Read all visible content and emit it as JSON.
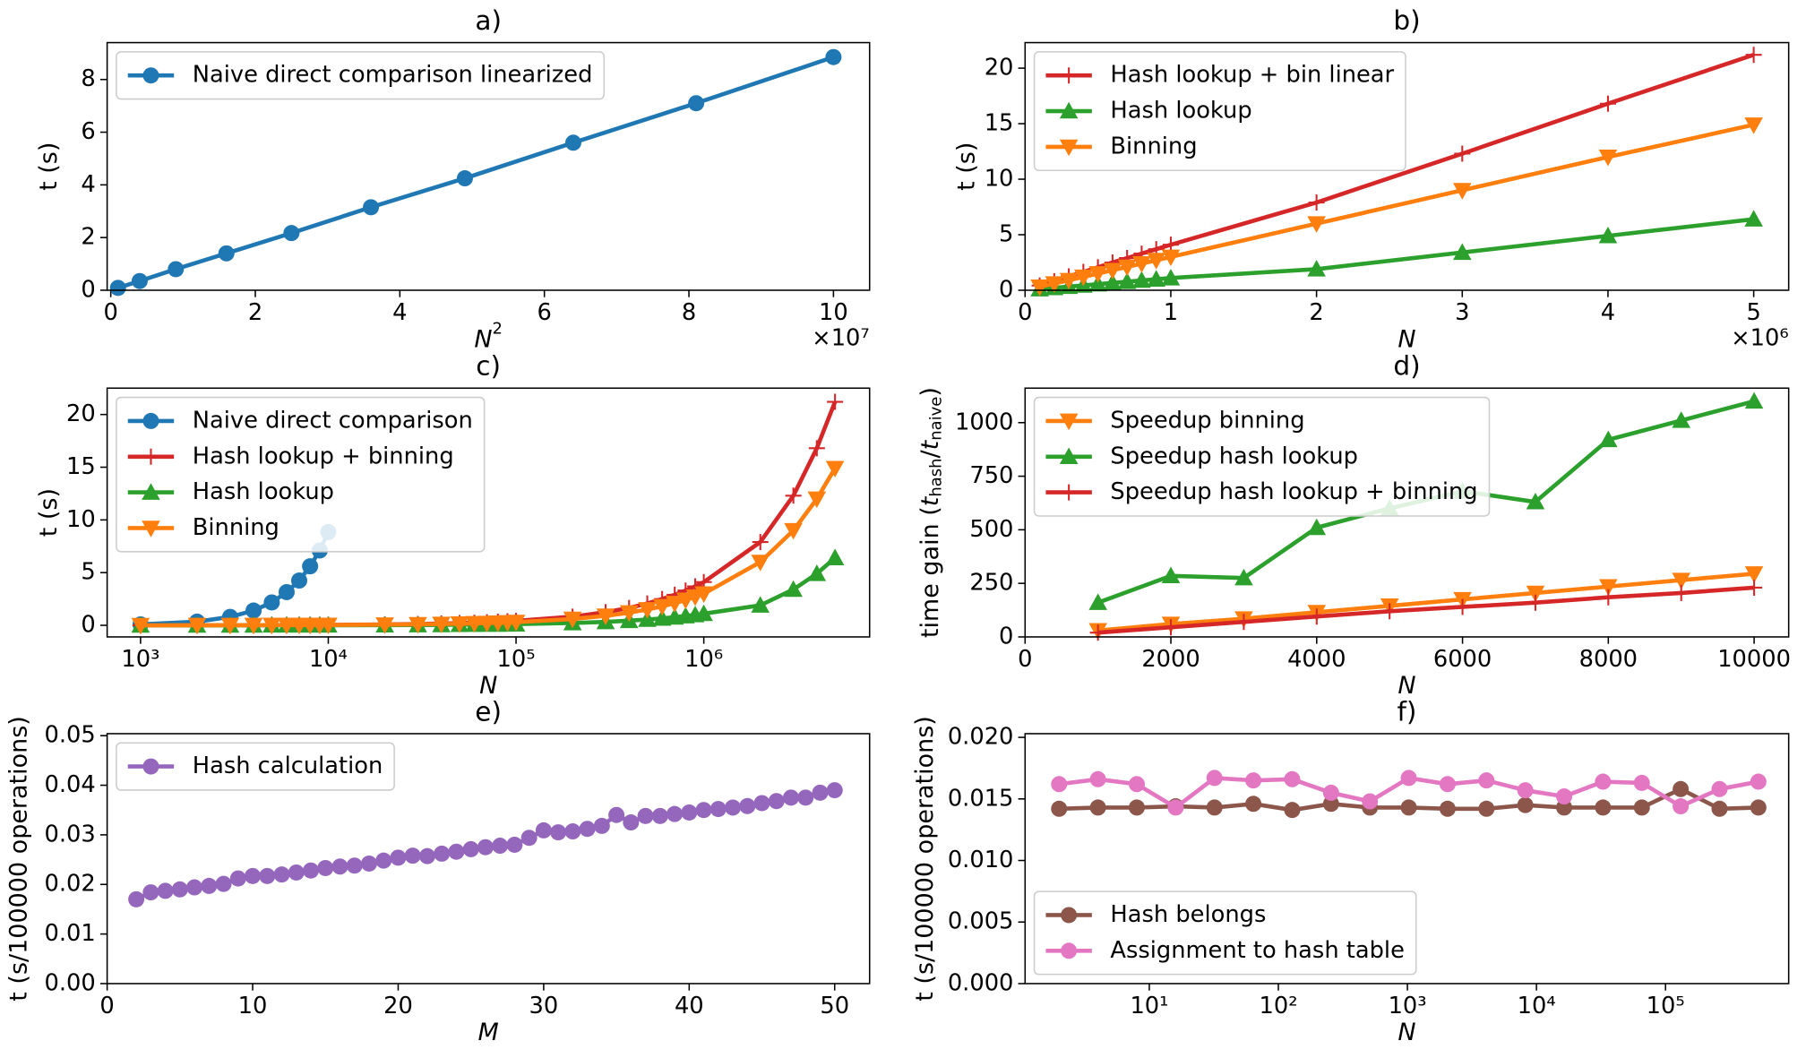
{
  "chart_data": [
    {
      "type": "line",
      "title": "a)",
      "x_label": "N",
      "x_label_sup": "2",
      "y_label": "t (s)",
      "x_offset_label": "×10⁷",
      "x": [
        0.1,
        0.4,
        0.9,
        1.6,
        2.5,
        3.6,
        4.9,
        6.4,
        8.1,
        10
      ],
      "series": [
        {
          "name": "Naive direct comparison linearized",
          "color": "#1f77b4",
          "marker": "o",
          "values": [
            0.09,
            0.35,
            0.8,
            1.4,
            2.17,
            3.15,
            4.25,
            5.6,
            7.1,
            8.85
          ]
        }
      ],
      "xlim": [
        -0.05,
        10.5
      ],
      "ylim": [
        0,
        9.4
      ],
      "xticks": [
        0,
        2,
        4,
        6,
        8,
        10
      ],
      "yticks": [
        0,
        2,
        4,
        6,
        8
      ],
      "legend": "upper left",
      "grid": false
    },
    {
      "type": "line",
      "title": "b)",
      "x_label": "N",
      "y_label": "t (s)",
      "x_offset_label": "×10⁶",
      "x": [
        0.1,
        0.2,
        0.3,
        0.4,
        0.5,
        0.6,
        0.7,
        0.8,
        0.9,
        1.0,
        2,
        3,
        4,
        5
      ],
      "series": [
        {
          "name": "Hash lookup + bin linear",
          "color": "#d62728",
          "marker": "+",
          "values": [
            0.42,
            0.82,
            1.25,
            1.65,
            2.07,
            2.5,
            2.9,
            3.3,
            3.7,
            4.1,
            7.9,
            12.3,
            16.8,
            21.2
          ]
        },
        {
          "name": "Hash lookup",
          "color": "#2ca02c",
          "marker": "^",
          "values": [
            0.11,
            0.22,
            0.33,
            0.44,
            0.55,
            0.66,
            0.77,
            0.88,
            0.99,
            1.1,
            1.9,
            3.4,
            4.9,
            6.4
          ]
        },
        {
          "name": "Binning",
          "color": "#ff7f0e",
          "marker": "v",
          "values": [
            0.3,
            0.6,
            0.9,
            1.2,
            1.5,
            1.8,
            2.1,
            2.4,
            2.7,
            3.0,
            6.0,
            9.0,
            12.0,
            14.9
          ]
        }
      ],
      "xlim": [
        0,
        5.24
      ],
      "ylim": [
        0,
        22.3
      ],
      "xticks": [
        0,
        1,
        2,
        3,
        4,
        5
      ],
      "yticks": [
        0,
        5,
        10,
        15,
        20
      ],
      "legend": "upper left",
      "grid": false
    },
    {
      "type": "line",
      "title": "c)",
      "x_label": "N",
      "y_label": "t (s)",
      "xscale": "log",
      "x": [
        1000,
        2000,
        3000,
        4000,
        5000,
        6000,
        7000,
        8000,
        9000,
        10000,
        20000,
        30000,
        40000,
        50000,
        60000,
        70000,
        80000,
        90000,
        100000,
        200000,
        300000,
        400000,
        500000,
        600000,
        700000,
        800000,
        900000,
        1000000,
        2000000,
        3000000,
        4000000,
        5000000
      ],
      "series": [
        {
          "name": "Naive direct comparison",
          "color": "#1f77b4",
          "marker": "o",
          "values": [
            0.09,
            0.35,
            0.8,
            1.4,
            2.17,
            3.15,
            4.25,
            5.6,
            7.1,
            8.85,
            null,
            null,
            null,
            null,
            null,
            null,
            null,
            null,
            null,
            null,
            null,
            null,
            null,
            null,
            null,
            null,
            null,
            null,
            null,
            null,
            null,
            null
          ]
        },
        {
          "name": "Hash lookup + binning",
          "color": "#d62728",
          "marker": "+",
          "values": [
            0.0,
            0.01,
            0.01,
            0.02,
            0.02,
            0.03,
            0.03,
            0.03,
            0.04,
            0.04,
            0.08,
            0.12,
            0.17,
            0.21,
            0.25,
            0.29,
            0.34,
            0.38,
            0.42,
            0.82,
            1.25,
            1.65,
            2.07,
            2.5,
            2.9,
            3.3,
            3.7,
            4.1,
            7.9,
            12.3,
            16.8,
            21.2
          ]
        },
        {
          "name": "Hash lookup",
          "color": "#2ca02c",
          "marker": "^",
          "values": [
            0.0,
            0.0,
            0.0,
            0.0,
            0.01,
            0.01,
            0.01,
            0.01,
            0.01,
            0.01,
            0.02,
            0.03,
            0.04,
            0.06,
            0.07,
            0.08,
            0.09,
            0.1,
            0.11,
            0.22,
            0.33,
            0.44,
            0.55,
            0.66,
            0.77,
            0.88,
            0.99,
            1.1,
            1.9,
            3.4,
            4.9,
            6.4
          ]
        },
        {
          "name": "Binning",
          "color": "#ff7f0e",
          "marker": "v",
          "values": [
            0.0,
            0.01,
            0.01,
            0.01,
            0.02,
            0.02,
            0.02,
            0.02,
            0.03,
            0.03,
            0.06,
            0.09,
            0.12,
            0.15,
            0.18,
            0.21,
            0.24,
            0.27,
            0.3,
            0.6,
            0.9,
            1.2,
            1.5,
            1.8,
            2.1,
            2.4,
            2.7,
            3.0,
            6.0,
            9.0,
            12.0,
            14.9
          ]
        }
      ],
      "xlim": [
        664,
        7640000
      ],
      "ylim": [
        -1.1,
        22.5
      ],
      "xticks": [
        {
          "value": 1000,
          "label": "10³"
        },
        {
          "value": 10000,
          "label": "10⁴"
        },
        {
          "value": 100000,
          "label": "10⁵"
        },
        {
          "value": 1000000,
          "label": "10⁶"
        }
      ],
      "yticks": [
        0,
        5,
        10,
        15,
        20
      ],
      "legend": "upper left",
      "grid": false
    },
    {
      "type": "line",
      "title": "d)",
      "x_label": "N",
      "y_label_parts": [
        "time gain (",
        "t",
        "hash",
        "/",
        "t",
        "naive",
        ")"
      ],
      "x": [
        1000,
        2000,
        3000,
        4000,
        5000,
        6000,
        7000,
        8000,
        9000,
        10000
      ],
      "series": [
        {
          "name": "Speedup binning",
          "color": "#ff7f0e",
          "marker": "v",
          "values": [
            30,
            60,
            85,
            115,
            145,
            175,
            205,
            235,
            265,
            295
          ]
        },
        {
          "name": "Speedup hash lookup",
          "color": "#2ca02c",
          "marker": "^",
          "values": [
            160,
            285,
            275,
            510,
            600,
            680,
            630,
            920,
            1010,
            1100
          ]
        },
        {
          "name": "Speedup hash lookup + binning",
          "color": "#d62728",
          "marker": "+",
          "values": [
            20,
            45,
            70,
            95,
            120,
            140,
            160,
            185,
            205,
            230
          ]
        }
      ],
      "xlim": [
        0,
        10474
      ],
      "ylim": [
        0,
        1161
      ],
      "xticks": [
        0,
        2000,
        4000,
        6000,
        8000,
        10000
      ],
      "yticks": [
        0,
        250,
        500,
        750,
        1000
      ],
      "legend": "upper left",
      "grid": false
    },
    {
      "type": "line",
      "title": "e)",
      "x_label": "M",
      "y_label": "t (s/100000 operations)",
      "x": [
        2,
        3,
        4,
        5,
        6,
        7,
        8,
        9,
        10,
        11,
        12,
        13,
        14,
        15,
        16,
        17,
        18,
        19,
        20,
        21,
        22,
        23,
        24,
        25,
        26,
        27,
        28,
        29,
        30,
        31,
        32,
        33,
        34,
        35,
        36,
        37,
        38,
        39,
        40,
        41,
        42,
        43,
        44,
        45,
        46,
        47,
        48,
        49,
        50
      ],
      "series": [
        {
          "name": "Hash calculation",
          "color": "#9467bd",
          "marker": "o",
          "values": [
            0.017,
            0.0184,
            0.0187,
            0.019,
            0.0194,
            0.0197,
            0.0201,
            0.0212,
            0.0217,
            0.0217,
            0.022,
            0.0224,
            0.0228,
            0.0233,
            0.0236,
            0.0238,
            0.0242,
            0.0248,
            0.0254,
            0.0258,
            0.0257,
            0.0262,
            0.0266,
            0.0271,
            0.0275,
            0.0278,
            0.028,
            0.0294,
            0.0309,
            0.0305,
            0.0307,
            0.0312,
            0.0318,
            0.034,
            0.0325,
            0.0338,
            0.0338,
            0.0342,
            0.0345,
            0.035,
            0.0352,
            0.0355,
            0.0358,
            0.0364,
            0.0368,
            0.0375,
            0.0375,
            0.0385,
            0.039
          ]
        }
      ],
      "xlim": [
        0,
        52.4
      ],
      "ylim": [
        0,
        0.0504
      ],
      "xticks": [
        0,
        10,
        20,
        30,
        40,
        50
      ],
      "yticks": [
        {
          "value": 0,
          "label": "0.00"
        },
        {
          "value": 0.01,
          "label": "0.01"
        },
        {
          "value": 0.02,
          "label": "0.02"
        },
        {
          "value": 0.03,
          "label": "0.03"
        },
        {
          "value": 0.04,
          "label": "0.04"
        },
        {
          "value": 0.05,
          "label": "0.05"
        }
      ],
      "legend": "upper left",
      "grid": false
    },
    {
      "type": "line",
      "title": "f)",
      "x_label": "N",
      "y_label": "t (s/100000 operations)",
      "xscale": "log",
      "x": [
        2,
        4,
        8,
        16,
        32,
        64,
        128,
        256,
        512,
        1024,
        2048,
        4096,
        8192,
        16384,
        32768,
        65536,
        131072,
        262144,
        524288
      ],
      "series": [
        {
          "name": "Hash belongs",
          "color": "#8c564b",
          "marker": "o",
          "values": [
            0.0142,
            0.0143,
            0.0143,
            0.0144,
            0.0143,
            0.0146,
            0.0141,
            0.0146,
            0.0143,
            0.0143,
            0.0142,
            0.0142,
            0.0145,
            0.0143,
            0.0143,
            0.0143,
            0.0158,
            0.0142,
            0.0143
          ]
        },
        {
          "name": "Assignment to hash table",
          "color": "#e377c2",
          "marker": "o",
          "values": [
            0.0162,
            0.0166,
            0.0162,
            0.0143,
            0.0167,
            0.0165,
            0.0166,
            0.0155,
            0.0148,
            0.0167,
            0.0162,
            0.0165,
            0.0157,
            0.0152,
            0.0164,
            0.0163,
            0.0144,
            0.0158,
            0.0164
          ]
        }
      ],
      "xlim": [
        1.09,
        900000
      ],
      "ylim": [
        0,
        0.0203
      ],
      "xticks": [
        {
          "value": 10,
          "label": "10¹"
        },
        {
          "value": 100,
          "label": "10²"
        },
        {
          "value": 1000,
          "label": "10³"
        },
        {
          "value": 10000,
          "label": "10⁴"
        },
        {
          "value": 100000,
          "label": "10⁵"
        }
      ],
      "yticks": [
        {
          "value": 0,
          "label": "0.000"
        },
        {
          "value": 0.005,
          "label": "0.005"
        },
        {
          "value": 0.01,
          "label": "0.010"
        },
        {
          "value": 0.015,
          "label": "0.015"
        },
        {
          "value": 0.02,
          "label": "0.020"
        }
      ],
      "legend": "lower left",
      "grid": false
    }
  ]
}
